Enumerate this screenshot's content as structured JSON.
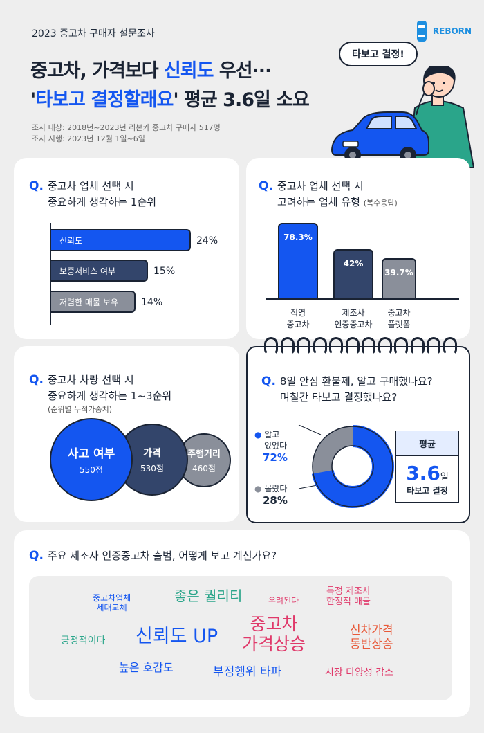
{
  "header": {
    "subtitle": "2023 중고차 구매자 설문조사",
    "title_line1_pre": "중고차, 가격보다 ",
    "title_line1_hl": "신뢰도",
    "title_line1_post": " 우선···",
    "title_line2_pre": "'",
    "title_line2_hl": "타보고 결정할래요",
    "title_line2_post": "' 평균 3.6일 소요",
    "meta_target": "조사 대상: 2018년~2023년 리본카 중고차 구매자 517명",
    "meta_period": "조사 시행: 2023년 12월 1일~6일",
    "brand": "REBORN",
    "bubble": "타보고 결정!"
  },
  "q1": {
    "q": "Q.",
    "title_a": "중고차 업체 선택 시",
    "title_b": "중요하게 생각하는 1순위",
    "bars": [
      {
        "label": "신뢰도",
        "value": "24%",
        "pct": 24,
        "color": "#1456f0"
      },
      {
        "label": "보증서비스 여부",
        "value": "15%",
        "pct": 15,
        "color": "#33456b"
      },
      {
        "label": "저렴한 매물 보유",
        "value": "14%",
        "pct": 14,
        "color": "#8a8f9a"
      }
    ]
  },
  "q2": {
    "q": "Q.",
    "title_a": "중고차 업체 선택 시",
    "title_b": "고려하는 업체 유형",
    "note": "(복수응답)",
    "bars": [
      {
        "label_a": "직영",
        "label_b": "중고차",
        "value": "78.3%",
        "pct": 78.3,
        "color": "#1456f0"
      },
      {
        "label_a": "제조사",
        "label_b": "인증중고차",
        "value": "42%",
        "pct": 42,
        "color": "#33456b"
      },
      {
        "label_a": "중고차",
        "label_b": "플랫폼",
        "value": "39.7%",
        "pct": 39.7,
        "color": "#8a8f9a"
      }
    ]
  },
  "q3": {
    "q": "Q.",
    "title_a": "중고차 차량 선택 시",
    "title_b": "중요하게 생각하는 1~3순위",
    "note": "(순위별 누적가중치)",
    "items": [
      {
        "name": "사고 여부",
        "points": "550점",
        "color": "#1456f0"
      },
      {
        "name": "가격",
        "points": "530점",
        "color": "#33456b"
      },
      {
        "name": "주행거리",
        "points": "460점",
        "color": "#8a8f9a"
      }
    ]
  },
  "q4": {
    "q": "Q.",
    "title_a": "8일 안심 환불제, 알고 구매했나요?",
    "title_b": "며칠간 타보고 결정했나요?",
    "known_label_a": "알고",
    "known_label_b": "있었다",
    "known_value": "72%",
    "known_pct": 72,
    "unknown_label": "몰랐다",
    "unknown_value": "28%",
    "avg_title": "평균",
    "avg_value": "3.6",
    "avg_unit": "일",
    "avg_caption": "타보고 결정",
    "colors": {
      "known": "#1456f0",
      "unknown": "#8a8f9a"
    }
  },
  "q5": {
    "q": "Q.",
    "title": "주요 제조사 인증중고차 출범, 어떻게 보고 계신가요?",
    "words": [
      {
        "text": "중고차업체\n세대교체",
        "color": "#1456f0"
      },
      {
        "text": "좋은 퀄리티",
        "color": "#2aa58a"
      },
      {
        "text": "우려된다",
        "color": "#e0396a"
      },
      {
        "text": "특정 제조사\n한정적 매물",
        "color": "#e0396a"
      },
      {
        "text": "긍정적이다",
        "color": "#2aa58a"
      },
      {
        "text": "신뢰도 UP",
        "color": "#1456f0"
      },
      {
        "text": "중고차\n가격상승",
        "color": "#e0396a"
      },
      {
        "text": "신차가격\n동반상승",
        "color": "#e85a3a"
      },
      {
        "text": "높은 호감도",
        "color": "#1456f0"
      },
      {
        "text": "부정행위 타파",
        "color": "#1456f0"
      },
      {
        "text": "시장 다양성 감소",
        "color": "#e0396a"
      }
    ]
  }
}
